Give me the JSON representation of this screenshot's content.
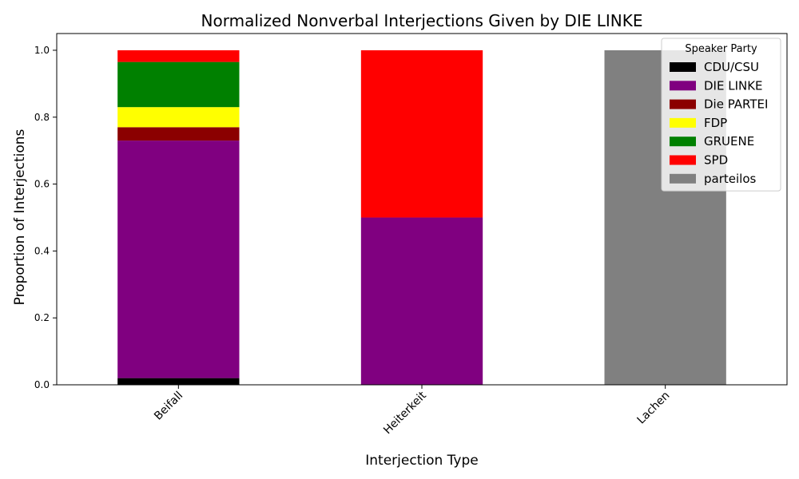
{
  "chart_data": {
    "type": "bar",
    "stacked": true,
    "title": "Normalized Nonverbal Interjections Given by DIE LINKE",
    "xlabel": "Interjection Type",
    "ylabel": "Proportion of Interjections",
    "ylim": [
      0,
      1.05
    ],
    "yticks": [
      "0.0",
      "0.2",
      "0.4",
      "0.6",
      "0.8",
      "1.0"
    ],
    "categories": [
      "Beifall",
      "Heiterkeit",
      "Lachen"
    ],
    "legend_title": "Speaker Party",
    "legend_position": "top-right",
    "grid": false,
    "series": [
      {
        "name": "CDU/CSU",
        "color": "#000000",
        "values": [
          0.02,
          0,
          0
        ]
      },
      {
        "name": "DIE LINKE",
        "color": "#800080",
        "values": [
          0.71,
          0.5,
          0
        ]
      },
      {
        "name": "Die PARTEI",
        "color": "#8b0000",
        "values": [
          0.04,
          0,
          0
        ]
      },
      {
        "name": "FDP",
        "color": "#ffff00",
        "values": [
          0.06,
          0,
          0
        ]
      },
      {
        "name": "GRUENE",
        "color": "#008000",
        "values": [
          0.135,
          0,
          0
        ]
      },
      {
        "name": "SPD",
        "color": "#ff0000",
        "values": [
          0.035,
          0.5,
          0
        ]
      },
      {
        "name": "parteilos",
        "color": "#808080",
        "values": [
          0,
          0,
          1.0
        ]
      }
    ]
  }
}
